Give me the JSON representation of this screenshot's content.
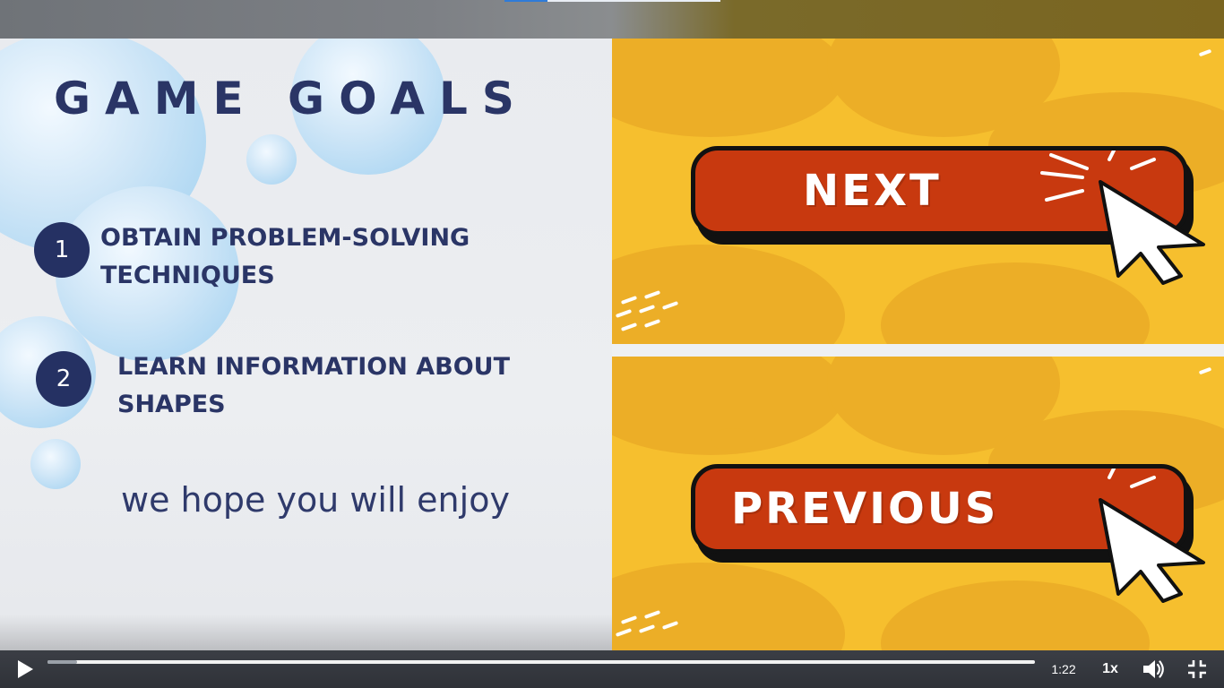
{
  "slide": {
    "title": "GAME GOALS",
    "goals": [
      {
        "number": "1",
        "text": "OBTAIN PROBLEM-SOLVING TECHNIQUES"
      },
      {
        "number": "2",
        "text": "LEARN INFORMATION ABOUT SHAPES"
      }
    ],
    "subtitle": "we hope you will enjoy"
  },
  "panels": {
    "next_label": "NEXT",
    "previous_label": "PREVIOUS"
  },
  "player": {
    "current_time": "1:22",
    "speed": "1x",
    "progress_fraction": 0.03
  },
  "colors": {
    "navy": "#253163",
    "button_red": "#c8390f",
    "yellow": "#f6bf2e"
  },
  "icons": {
    "play": "play-icon",
    "volume": "volume-icon",
    "exit_fullscreen": "exit-fullscreen-icon",
    "cursor": "mouse-pointer-icon"
  }
}
